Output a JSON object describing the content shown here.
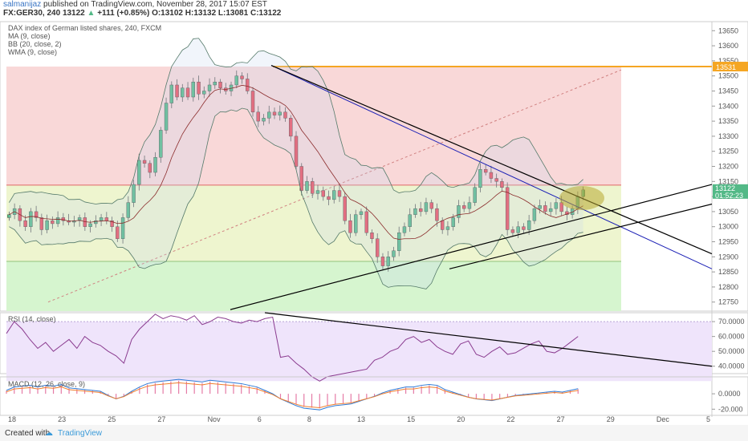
{
  "header": {
    "author": "salmanijaz",
    "published": "published on TradingView.com, November 28, 2017 15:07 EST"
  },
  "symbol": {
    "line": "FX:GER30, 240",
    "o_label": "O:",
    "o": "13102",
    "h_label": "H:",
    "h": "13132",
    "l_label": "L:",
    "l": "13081",
    "c_label": "C:",
    "c": "13122",
    "last": "13122",
    "change": "+111 (+0.85%)"
  },
  "legend": [
    "DAX index of German listed shares, 240, FXCM",
    "MA (9, close)",
    "BB (20, close, 2)",
    "WMA (9, close)"
  ],
  "price_labels": {
    "level": "13531",
    "last": "13122",
    "timer": "01:52:23"
  },
  "rsi_label": "RSI (14, close)",
  "macd_label": "MACD (12, 26, close, 9)",
  "footer": {
    "text": "Created with",
    "brand": "TradingView"
  },
  "colors": {
    "up": "#53b987",
    "down": "#eb4d5c",
    "level": "#f5a623",
    "trend_blue": "#1a1fb5"
  },
  "chart_data": [
    {
      "type": "candlestick",
      "x_ticks": [
        "18",
        "23",
        "25",
        "27",
        "Nov",
        "6",
        "8",
        "13",
        "15",
        "20",
        "22",
        "27",
        "29",
        "Dec",
        "5"
      ],
      "y_ticks": [
        12750,
        12800,
        12850,
        12900,
        12950,
        13000,
        13050,
        13100,
        13150,
        13200,
        13250,
        13300,
        13350,
        13400,
        13450,
        13500,
        13550,
        13600,
        13650
      ],
      "ylim": [
        12720,
        13680
      ],
      "closes": [
        13040,
        13060,
        13020,
        13000,
        13050,
        13030,
        12990,
        13020,
        13010,
        13030,
        13020,
        13015,
        13020,
        13030,
        13000,
        13010,
        13020,
        13030,
        13020,
        13000,
        12960,
        13030,
        13080,
        13140,
        13220,
        13210,
        13180,
        13230,
        13320,
        13410,
        13470,
        13430,
        13460,
        13430,
        13480,
        13440,
        13450,
        13470,
        13480,
        13460,
        13450,
        13470,
        13500,
        13490,
        13450,
        13380,
        13350,
        13360,
        13380,
        13370,
        13380,
        13360,
        13300,
        13200,
        13120,
        13150,
        13110,
        13120,
        13100,
        13090,
        13120,
        13100,
        13020,
        12980,
        13040,
        13050,
        12980,
        12960,
        12900,
        12870,
        12900,
        12920,
        12980,
        13000,
        13040,
        13060,
        13050,
        13080,
        13060,
        13020,
        12990,
        13000,
        13030,
        13070,
        13060,
        13080,
        13130,
        13190,
        13180,
        13160,
        13150,
        13130,
        12990,
        12980,
        13000,
        12990,
        13020,
        13060,
        13070,
        13050,
        13060,
        13080,
        13050,
        13040,
        13060,
        13100,
        13122
      ],
      "levels": [
        {
          "name": "resistance",
          "value": 13531
        }
      ],
      "last": 13122
    },
    {
      "type": "line",
      "name": "RSI (14, close)",
      "y_ticks": [
        "70.0000",
        "60.0000",
        "50.0000",
        "40.0000"
      ],
      "ylim": [
        35,
        76
      ],
      "values": [
        62,
        70,
        65,
        58,
        52,
        56,
        50,
        54,
        58,
        52,
        60,
        56,
        54,
        50,
        47,
        42,
        58,
        65,
        70,
        75,
        72,
        74,
        73,
        71,
        74,
        68,
        70,
        73,
        72,
        70,
        69,
        71,
        70,
        72,
        73,
        46,
        47,
        42,
        38,
        33,
        30,
        33,
        34,
        35,
        36,
        37,
        38,
        44,
        46,
        50,
        52,
        58,
        60,
        56,
        58,
        53,
        50,
        48,
        55,
        57,
        48,
        46,
        50,
        53,
        48,
        49,
        52,
        55,
        57,
        50,
        49,
        52,
        56,
        60
      ]
    },
    {
      "type": "bar",
      "name": "MACD (12, 26, close, 9)",
      "y_ticks": [
        "0.0000",
        "-20.000"
      ],
      "ylim": [
        -28,
        22
      ],
      "values": [
        4,
        8,
        9,
        10,
        8,
        10,
        9,
        11,
        7,
        6,
        5,
        4,
        3,
        -2,
        -6,
        -3,
        3,
        8,
        12,
        14,
        15,
        16,
        17,
        16,
        15,
        14,
        16,
        15,
        14,
        13,
        12,
        10,
        8,
        4,
        0,
        -6,
        -10,
        -14,
        -17,
        -18,
        -19,
        -16,
        -14,
        -13,
        -12,
        -9,
        -6,
        -3,
        1,
        4,
        6,
        8,
        8,
        10,
        11,
        10,
        5,
        2,
        -1,
        -4,
        -6,
        -7,
        -8,
        -6,
        -4,
        -2,
        -1,
        0,
        1,
        2,
        3,
        2,
        4,
        6
      ]
    }
  ]
}
